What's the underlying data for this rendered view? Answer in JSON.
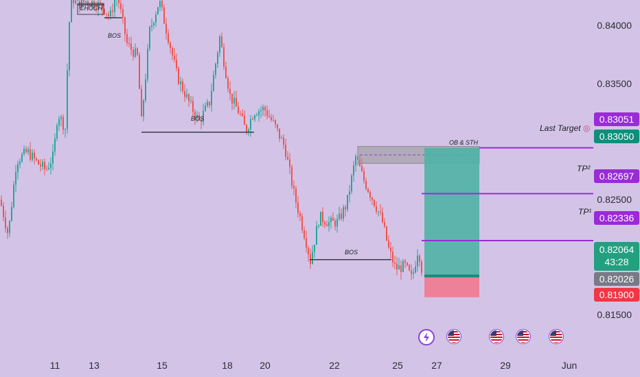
{
  "chart_data": {
    "type": "candlestick",
    "y_range": [
      0.8135,
      0.8425
    ],
    "y_ticks": [
      "0.84000",
      "0.83500",
      "0.82500",
      "0.81500"
    ],
    "x_ticks": [
      "11",
      "13",
      "15",
      "18",
      "20",
      "22",
      "25",
      "27",
      "29",
      "Jun"
    ],
    "price_labels": [
      {
        "value": "0.83051",
        "color": "#9a2bd6"
      },
      {
        "value": "0.83050",
        "color": "#0f8f7a"
      },
      {
        "value": "0.82697",
        "color": "#9a2bd6"
      },
      {
        "value": "0.82336",
        "color": "#9a2bd6"
      },
      {
        "value": "0.82064",
        "sub": "43:28",
        "color": "#22a07f"
      },
      {
        "value": "0.82026",
        "color": "#787b86"
      },
      {
        "value": "0.81900",
        "color": "#f23645"
      }
    ],
    "annotations": {
      "choch": "CHOCH",
      "bos_top": "BOS",
      "bos_mid": "BOS",
      "bos_low": "BOS",
      "ob_sth": "OB & STH",
      "last_target": "Last Target",
      "tp2": "TP²",
      "tp1": "TP¹"
    },
    "trade": {
      "entry": 0.82064,
      "stop": 0.819,
      "target": 0.8305
    },
    "colors": {
      "up": "#26a69a",
      "down": "#ef5350",
      "target_line": "#9a2bd6",
      "profit_zone": "#4fb3a6",
      "loss_zone": "#f07a8e"
    }
  }
}
